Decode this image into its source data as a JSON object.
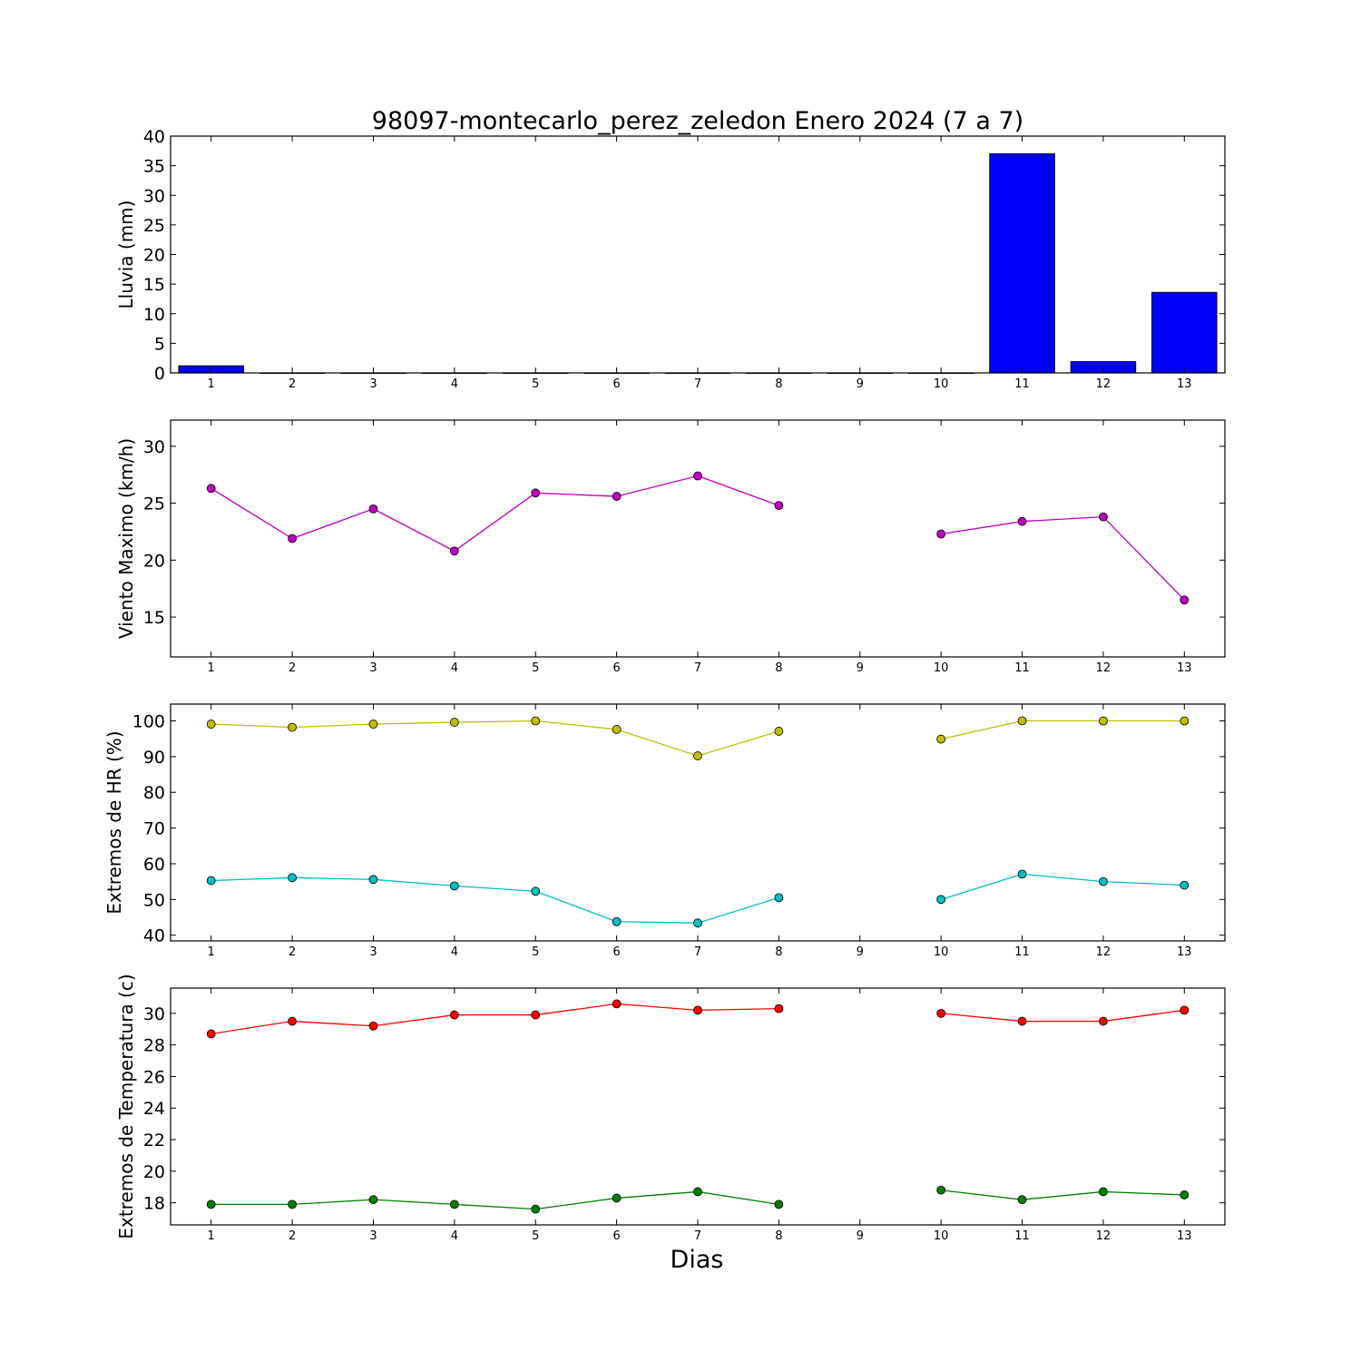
{
  "chart_data": [
    {
      "type": "bar",
      "title": "98097-montecarlo_perez_zeledon Enero 2024  (7 a 7)",
      "ylabel": "Lluvia (mm)",
      "xlabel": "",
      "x": [
        1,
        2,
        3,
        4,
        5,
        6,
        7,
        8,
        9,
        10,
        11,
        12,
        13
      ],
      "xticks": [
        "1",
        "2",
        "3",
        "4",
        "5",
        "6",
        "7",
        "8",
        "9",
        "10",
        "11",
        "12",
        "13"
      ],
      "xlim": [
        0.5,
        13.5
      ],
      "ylim": [
        0,
        40
      ],
      "yticks": [
        0,
        5,
        10,
        15,
        20,
        25,
        30,
        35,
        40
      ],
      "series": [
        {
          "values": [
            1.2,
            0,
            0,
            0,
            0,
            0,
            0,
            0,
            0,
            0,
            37,
            1.9,
            13.6
          ],
          "color": "#0000ff"
        }
      ],
      "grid": false
    },
    {
      "type": "line",
      "title": "",
      "ylabel": "Viento Maximo (km/h)",
      "xlabel": "",
      "x": [
        1,
        2,
        3,
        4,
        5,
        6,
        7,
        8,
        9,
        10,
        11,
        12,
        13
      ],
      "xticks": [
        "1",
        "2",
        "3",
        "4",
        "5",
        "6",
        "7",
        "8",
        "9",
        "10",
        "11",
        "12",
        "13"
      ],
      "xlim": [
        0.5,
        13.5
      ],
      "ylim": [
        11.5,
        32.3
      ],
      "yticks": [
        15,
        20,
        25,
        30
      ],
      "series": [
        {
          "values": [
            26.3,
            21.9,
            24.5,
            20.8,
            25.9,
            25.6,
            27.4,
            24.8,
            null,
            22.3,
            23.4,
            23.8,
            16.5
          ],
          "color": "#bf00bf"
        }
      ],
      "grid": false
    },
    {
      "type": "line",
      "title": "",
      "ylabel": "Extremos de HR (%)",
      "xlabel": "",
      "x": [
        1,
        2,
        3,
        4,
        5,
        6,
        7,
        8,
        9,
        10,
        11,
        12,
        13
      ],
      "xticks": [
        "1",
        "2",
        "3",
        "4",
        "5",
        "6",
        "7",
        "8",
        "9",
        "10",
        "11",
        "12",
        "13"
      ],
      "xlim": [
        0.5,
        13.5
      ],
      "ylim": [
        38.4,
        104.7
      ],
      "yticks": [
        40,
        50,
        60,
        70,
        80,
        90,
        100
      ],
      "series": [
        {
          "values": [
            99.1,
            98.2,
            99.1,
            99.6,
            100,
            97.6,
            90.2,
            97.1,
            null,
            94.9,
            100,
            100,
            100
          ],
          "color": "#bfbf00"
        },
        {
          "values": [
            55.3,
            56.1,
            55.6,
            53.8,
            52.3,
            43.8,
            43.4,
            50.5,
            null,
            50.0,
            57.1,
            55.0,
            54.0
          ],
          "color": "#00bfbf"
        }
      ],
      "grid": false
    },
    {
      "type": "line",
      "title": "",
      "ylabel": "Extremos de Temperatura (c)",
      "xlabel": "Dias",
      "x": [
        1,
        2,
        3,
        4,
        5,
        6,
        7,
        8,
        9,
        10,
        11,
        12,
        13
      ],
      "xticks": [
        "1",
        "2",
        "3",
        "4",
        "5",
        "6",
        "7",
        "8",
        "9",
        "10",
        "11",
        "12",
        "13"
      ],
      "xlim": [
        0.5,
        13.5
      ],
      "ylim": [
        16.6,
        31.6
      ],
      "yticks": [
        18,
        20,
        22,
        24,
        26,
        28,
        30
      ],
      "series": [
        {
          "values": [
            28.7,
            29.5,
            29.2,
            29.9,
            29.9,
            30.6,
            30.2,
            30.3,
            null,
            30.0,
            29.5,
            29.5,
            30.2
          ],
          "color": "#ff0000"
        },
        {
          "values": [
            17.9,
            17.9,
            18.2,
            17.9,
            17.6,
            18.3,
            18.7,
            17.9,
            null,
            18.8,
            18.2,
            18.7,
            18.5
          ],
          "color": "#008000"
        }
      ],
      "grid": false
    }
  ]
}
